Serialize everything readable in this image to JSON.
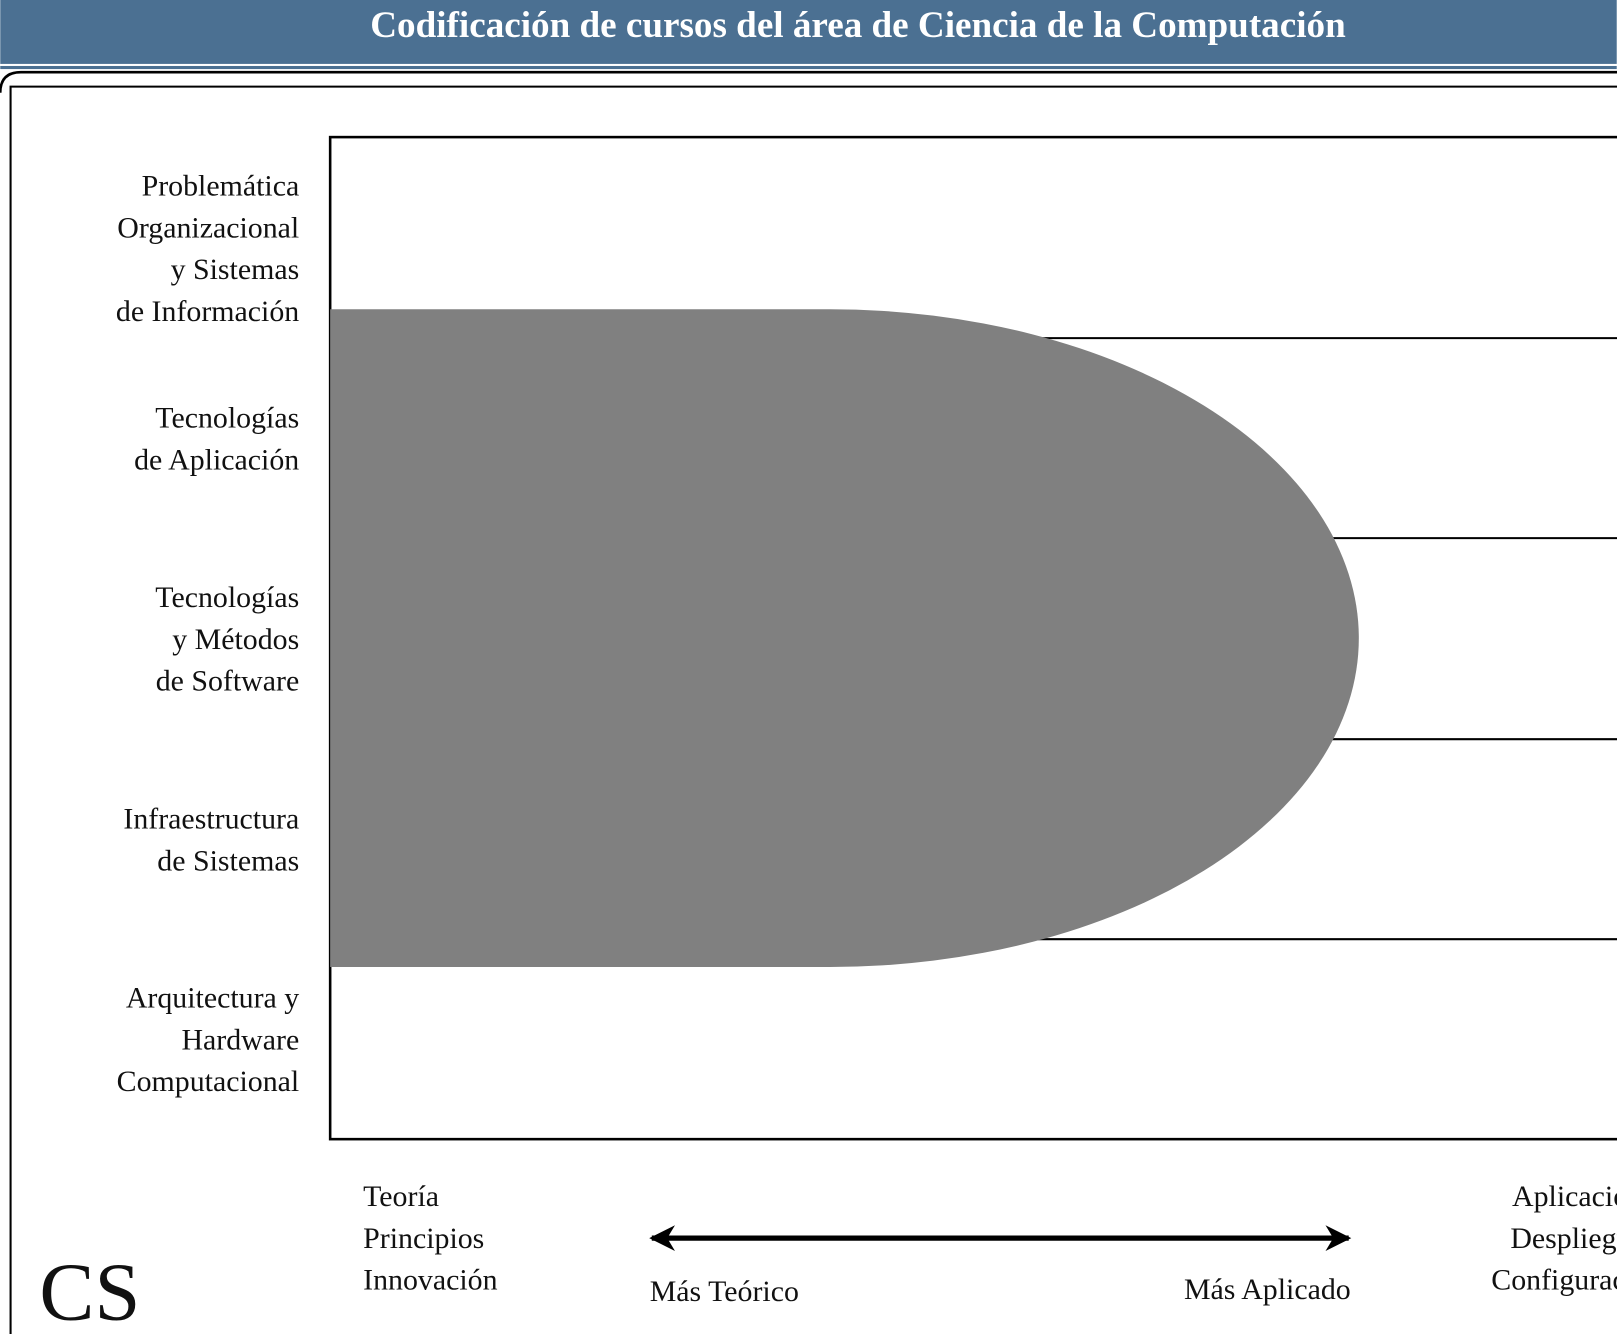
{
  "header": {
    "title": "Codificación de cursos del área de Ciencia de la Computación"
  },
  "rows": [
    {
      "label": [
        "Problemática",
        "Organizacional",
        "y Sistemas",
        "de Información"
      ]
    },
    {
      "label": [
        "Tecnologías",
        "de Aplicación"
      ]
    },
    {
      "label": [
        "Tecnologías",
        "y Métodos",
        "de Software"
      ]
    },
    {
      "label": [
        "Infraestructura",
        "de Sistemas"
      ]
    },
    {
      "label": [
        "Arquitectura y",
        "Hardware",
        "Computacional"
      ]
    }
  ],
  "axis": {
    "left_text": [
      "Teoría",
      "Principios",
      "Innovación"
    ],
    "right_text": [
      "Aplicación",
      "Despliegue",
      "Configuración"
    ],
    "arrow_left": "Más Teórico",
    "arrow_right": "Más Aplicado"
  },
  "logo": "CS"
}
